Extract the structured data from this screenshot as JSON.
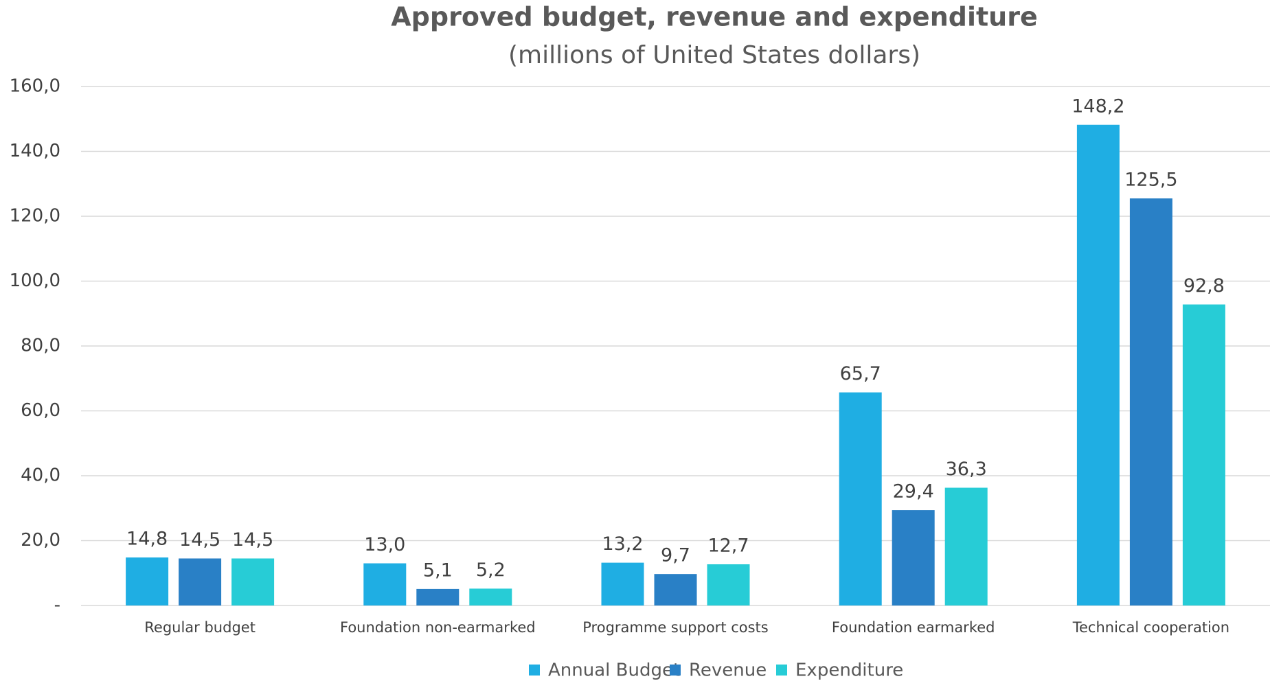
{
  "chart_data": {
    "type": "bar",
    "title": "Approved budget, revenue and expenditure",
    "subtitle": "(millions of United States dollars)",
    "categories": [
      "Regular budget",
      "Foundation non-earmarked",
      "Programme support costs",
      "Foundation earmarked",
      "Technical cooperation"
    ],
    "series": [
      {
        "name": "Annual Budget",
        "color": "#1faee3",
        "values": [
          14.8,
          13.0,
          13.2,
          65.7,
          148.2
        ],
        "value_labels": [
          "14,8",
          "13,0",
          "13,2",
          "65,7",
          "148,2"
        ]
      },
      {
        "name": "Revenue",
        "color": "#2980c6",
        "values": [
          14.5,
          5.1,
          9.7,
          29.4,
          125.5
        ],
        "value_labels": [
          "14,5",
          "5,1",
          "9,7",
          "29,4",
          "125,5"
        ]
      },
      {
        "name": "Expenditure",
        "color": "#27ccd6",
        "values": [
          14.5,
          5.2,
          12.7,
          36.3,
          92.8
        ],
        "value_labels": [
          "14,5",
          "5,2",
          "12,7",
          "36,3",
          "92,8"
        ]
      }
    ],
    "ylim": [
      0,
      160
    ],
    "yticks": [
      {
        "value": 0,
        "label": "-"
      },
      {
        "value": 20,
        "label": "20,0"
      },
      {
        "value": 40,
        "label": "40,0"
      },
      {
        "value": 60,
        "label": "60,0"
      },
      {
        "value": 80,
        "label": "80,0"
      },
      {
        "value": 100,
        "label": "100,0"
      },
      {
        "value": 120,
        "label": "120,0"
      },
      {
        "value": 140,
        "label": "140,0"
      },
      {
        "value": 160,
        "label": "160,0"
      }
    ],
    "grid": true,
    "legend": "bottom"
  }
}
